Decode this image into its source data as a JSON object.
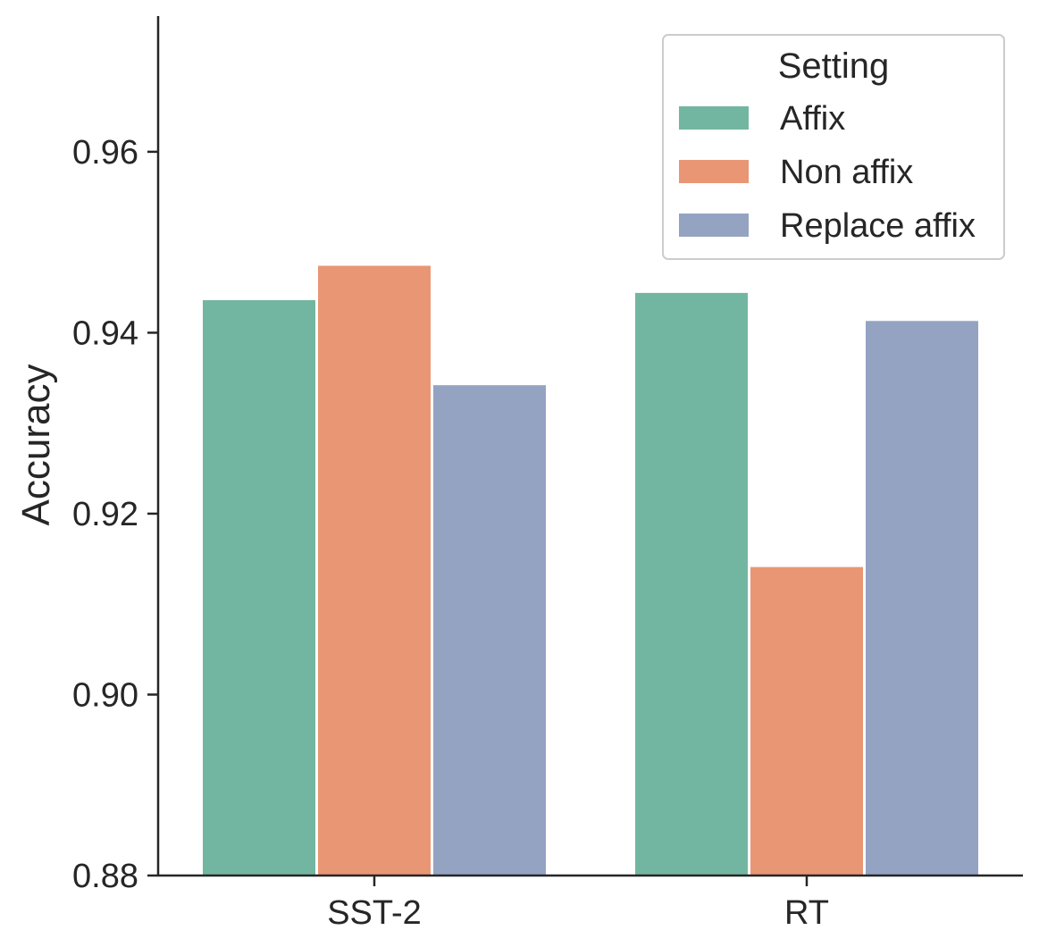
{
  "chart_data": {
    "type": "bar",
    "title": "",
    "xlabel": "",
    "ylabel": "Accuracy",
    "categories": [
      "SST-2",
      "RT"
    ],
    "series": [
      {
        "name": "Affix",
        "color": "#72b6a1",
        "values": [
          0.9436,
          0.9444
        ]
      },
      {
        "name": "Non affix",
        "color": "#e99675",
        "values": [
          0.9474,
          0.9141
        ]
      },
      {
        "name": "Replace affix",
        "color": "#95a3c3",
        "values": [
          0.9342,
          0.9413
        ]
      }
    ],
    "ylim": [
      0.88,
      0.975
    ],
    "yticks": [
      0.88,
      0.9,
      0.92,
      0.94,
      0.96
    ],
    "ytick_labels": [
      "0.88",
      "0.90",
      "0.92",
      "0.94",
      "0.96"
    ],
    "grid": false,
    "legend": {
      "title": "Setting",
      "placement": "top-right"
    }
  }
}
